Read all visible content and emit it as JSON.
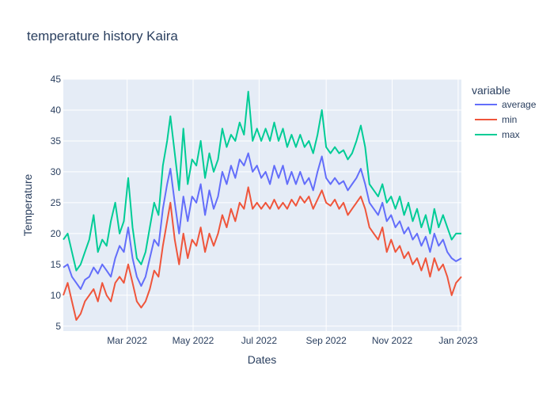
{
  "chart_data": {
    "type": "line",
    "title": "temperature history Kaira",
    "xlabel": "Dates",
    "ylabel": "Temperature",
    "x_range": [
      "2022-01-01",
      "2023-01-04"
    ],
    "ylim": [
      4.2,
      45
    ],
    "y_ticks": [
      5,
      10,
      15,
      20,
      25,
      30,
      35,
      40,
      45
    ],
    "x_ticks": [
      {
        "date": "2022-03-01",
        "label": "Mar 2022"
      },
      {
        "date": "2022-05-01",
        "label": "May 2022"
      },
      {
        "date": "2022-07-01",
        "label": "Jul 2022"
      },
      {
        "date": "2022-09-01",
        "label": "Sep 2022"
      },
      {
        "date": "2022-11-01",
        "label": "Nov 2022"
      },
      {
        "date": "2023-01-01",
        "label": "Jan 2023"
      }
    ],
    "grid": true,
    "plot_background": "#e5ecf6",
    "legend": {
      "title": "variable",
      "placement": "right"
    },
    "series": [
      {
        "name": "average",
        "color": "#636efa",
        "points": [
          [
            "2022-01-01",
            14.5
          ],
          [
            "2022-01-05",
            15
          ],
          [
            "2022-01-09",
            13
          ],
          [
            "2022-01-13",
            12
          ],
          [
            "2022-01-17",
            11
          ],
          [
            "2022-01-21",
            12.5
          ],
          [
            "2022-01-25",
            13
          ],
          [
            "2022-01-29",
            14.5
          ],
          [
            "2022-02-02",
            13.5
          ],
          [
            "2022-02-06",
            15
          ],
          [
            "2022-02-10",
            14
          ],
          [
            "2022-02-14",
            13
          ],
          [
            "2022-02-18",
            16
          ],
          [
            "2022-02-22",
            18
          ],
          [
            "2022-02-26",
            17
          ],
          [
            "2022-03-02",
            21
          ],
          [
            "2022-03-06",
            16
          ],
          [
            "2022-03-10",
            13
          ],
          [
            "2022-03-14",
            11.5
          ],
          [
            "2022-03-18",
            13
          ],
          [
            "2022-03-22",
            16
          ],
          [
            "2022-03-26",
            19
          ],
          [
            "2022-03-30",
            18
          ],
          [
            "2022-04-03",
            24
          ],
          [
            "2022-04-07",
            28
          ],
          [
            "2022-04-10",
            30.5
          ],
          [
            "2022-04-14",
            25
          ],
          [
            "2022-04-18",
            20
          ],
          [
            "2022-04-22",
            26
          ],
          [
            "2022-04-26",
            22
          ],
          [
            "2022-04-30",
            26
          ],
          [
            "2022-05-04",
            25
          ],
          [
            "2022-05-08",
            28
          ],
          [
            "2022-05-12",
            23
          ],
          [
            "2022-05-16",
            27
          ],
          [
            "2022-05-20",
            24
          ],
          [
            "2022-05-24",
            26
          ],
          [
            "2022-05-28",
            30
          ],
          [
            "2022-06-01",
            28
          ],
          [
            "2022-06-05",
            31
          ],
          [
            "2022-06-09",
            29
          ],
          [
            "2022-06-13",
            32
          ],
          [
            "2022-06-17",
            31
          ],
          [
            "2022-06-21",
            33
          ],
          [
            "2022-06-25",
            30
          ],
          [
            "2022-06-29",
            31
          ],
          [
            "2022-07-03",
            29
          ],
          [
            "2022-07-07",
            30
          ],
          [
            "2022-07-11",
            28
          ],
          [
            "2022-07-15",
            31
          ],
          [
            "2022-07-19",
            29
          ],
          [
            "2022-07-23",
            31
          ],
          [
            "2022-07-27",
            28
          ],
          [
            "2022-07-31",
            30
          ],
          [
            "2022-08-04",
            28
          ],
          [
            "2022-08-08",
            30
          ],
          [
            "2022-08-12",
            28
          ],
          [
            "2022-08-16",
            29
          ],
          [
            "2022-08-20",
            27
          ],
          [
            "2022-08-24",
            30
          ],
          [
            "2022-08-28",
            32.5
          ],
          [
            "2022-09-01",
            29
          ],
          [
            "2022-09-05",
            28
          ],
          [
            "2022-09-09",
            29
          ],
          [
            "2022-09-13",
            28
          ],
          [
            "2022-09-17",
            28.5
          ],
          [
            "2022-09-21",
            27
          ],
          [
            "2022-09-25",
            28
          ],
          [
            "2022-09-29",
            29
          ],
          [
            "2022-10-03",
            30.5
          ],
          [
            "2022-10-07",
            28
          ],
          [
            "2022-10-11",
            25
          ],
          [
            "2022-10-15",
            24
          ],
          [
            "2022-10-19",
            23
          ],
          [
            "2022-10-23",
            25
          ],
          [
            "2022-10-27",
            22
          ],
          [
            "2022-10-31",
            23
          ],
          [
            "2022-11-04",
            21
          ],
          [
            "2022-11-08",
            22
          ],
          [
            "2022-11-12",
            20
          ],
          [
            "2022-11-16",
            21
          ],
          [
            "2022-11-20",
            19
          ],
          [
            "2022-11-24",
            20
          ],
          [
            "2022-11-28",
            18
          ],
          [
            "2022-12-02",
            19.5
          ],
          [
            "2022-12-06",
            17
          ],
          [
            "2022-12-10",
            20
          ],
          [
            "2022-12-14",
            18
          ],
          [
            "2022-12-18",
            19
          ],
          [
            "2022-12-22",
            17
          ],
          [
            "2022-12-26",
            16
          ],
          [
            "2022-12-30",
            15.5
          ],
          [
            "2023-01-04",
            16
          ]
        ]
      },
      {
        "name": "min",
        "color": "#ef553b",
        "points": [
          [
            "2022-01-01",
            10
          ],
          [
            "2022-01-05",
            12
          ],
          [
            "2022-01-09",
            9
          ],
          [
            "2022-01-13",
            6
          ],
          [
            "2022-01-17",
            7
          ],
          [
            "2022-01-21",
            9
          ],
          [
            "2022-01-25",
            10
          ],
          [
            "2022-01-29",
            11
          ],
          [
            "2022-02-02",
            9
          ],
          [
            "2022-02-06",
            12
          ],
          [
            "2022-02-10",
            10
          ],
          [
            "2022-02-14",
            9
          ],
          [
            "2022-02-18",
            12
          ],
          [
            "2022-02-22",
            13
          ],
          [
            "2022-02-26",
            12
          ],
          [
            "2022-03-02",
            15
          ],
          [
            "2022-03-06",
            12
          ],
          [
            "2022-03-10",
            9
          ],
          [
            "2022-03-14",
            8
          ],
          [
            "2022-03-18",
            9
          ],
          [
            "2022-03-22",
            11
          ],
          [
            "2022-03-26",
            14
          ],
          [
            "2022-03-30",
            13
          ],
          [
            "2022-04-03",
            18
          ],
          [
            "2022-04-07",
            22
          ],
          [
            "2022-04-10",
            25
          ],
          [
            "2022-04-14",
            19
          ],
          [
            "2022-04-18",
            15
          ],
          [
            "2022-04-22",
            20
          ],
          [
            "2022-04-26",
            16
          ],
          [
            "2022-04-30",
            19
          ],
          [
            "2022-05-04",
            18
          ],
          [
            "2022-05-08",
            21
          ],
          [
            "2022-05-12",
            17
          ],
          [
            "2022-05-16",
            20
          ],
          [
            "2022-05-20",
            18
          ],
          [
            "2022-05-24",
            20
          ],
          [
            "2022-05-28",
            23
          ],
          [
            "2022-06-01",
            21
          ],
          [
            "2022-06-05",
            24
          ],
          [
            "2022-06-09",
            22
          ],
          [
            "2022-06-13",
            25
          ],
          [
            "2022-06-17",
            24
          ],
          [
            "2022-06-21",
            27.5
          ],
          [
            "2022-06-25",
            24
          ],
          [
            "2022-06-29",
            25
          ],
          [
            "2022-07-03",
            24
          ],
          [
            "2022-07-07",
            25
          ],
          [
            "2022-07-11",
            24
          ],
          [
            "2022-07-15",
            25.5
          ],
          [
            "2022-07-19",
            24
          ],
          [
            "2022-07-23",
            25
          ],
          [
            "2022-07-27",
            24
          ],
          [
            "2022-07-31",
            25.5
          ],
          [
            "2022-08-04",
            24.5
          ],
          [
            "2022-08-08",
            26
          ],
          [
            "2022-08-12",
            25
          ],
          [
            "2022-08-16",
            26
          ],
          [
            "2022-08-20",
            24
          ],
          [
            "2022-08-24",
            25.5
          ],
          [
            "2022-08-28",
            27
          ],
          [
            "2022-09-01",
            25
          ],
          [
            "2022-09-05",
            24.5
          ],
          [
            "2022-09-09",
            25.5
          ],
          [
            "2022-09-13",
            24
          ],
          [
            "2022-09-17",
            25
          ],
          [
            "2022-09-21",
            23
          ],
          [
            "2022-09-25",
            24
          ],
          [
            "2022-09-29",
            25
          ],
          [
            "2022-10-03",
            26
          ],
          [
            "2022-10-07",
            24
          ],
          [
            "2022-10-11",
            21
          ],
          [
            "2022-10-15",
            20
          ],
          [
            "2022-10-19",
            19
          ],
          [
            "2022-10-23",
            21
          ],
          [
            "2022-10-27",
            17
          ],
          [
            "2022-10-31",
            19
          ],
          [
            "2022-11-04",
            17
          ],
          [
            "2022-11-08",
            18
          ],
          [
            "2022-11-12",
            16
          ],
          [
            "2022-11-16",
            17
          ],
          [
            "2022-11-20",
            15
          ],
          [
            "2022-11-24",
            16
          ],
          [
            "2022-11-28",
            14
          ],
          [
            "2022-12-02",
            16
          ],
          [
            "2022-12-06",
            13
          ],
          [
            "2022-12-10",
            16
          ],
          [
            "2022-12-14",
            14
          ],
          [
            "2022-12-18",
            15
          ],
          [
            "2022-12-22",
            13
          ],
          [
            "2022-12-26",
            10
          ],
          [
            "2022-12-30",
            12
          ],
          [
            "2023-01-04",
            13
          ]
        ]
      },
      {
        "name": "max",
        "color": "#00cc96",
        "points": [
          [
            "2022-01-01",
            19
          ],
          [
            "2022-01-05",
            20
          ],
          [
            "2022-01-09",
            17
          ],
          [
            "2022-01-13",
            14
          ],
          [
            "2022-01-17",
            15
          ],
          [
            "2022-01-21",
            17
          ],
          [
            "2022-01-25",
            19
          ],
          [
            "2022-01-29",
            23
          ],
          [
            "2022-02-02",
            17
          ],
          [
            "2022-02-06",
            19
          ],
          [
            "2022-02-10",
            18
          ],
          [
            "2022-02-14",
            22
          ],
          [
            "2022-02-18",
            25
          ],
          [
            "2022-02-22",
            20
          ],
          [
            "2022-02-26",
            22
          ],
          [
            "2022-03-02",
            29
          ],
          [
            "2022-03-06",
            21
          ],
          [
            "2022-03-10",
            16
          ],
          [
            "2022-03-14",
            15
          ],
          [
            "2022-03-18",
            17
          ],
          [
            "2022-03-22",
            21
          ],
          [
            "2022-03-26",
            25
          ],
          [
            "2022-03-30",
            23
          ],
          [
            "2022-04-03",
            31
          ],
          [
            "2022-04-07",
            35
          ],
          [
            "2022-04-10",
            39
          ],
          [
            "2022-04-14",
            33
          ],
          [
            "2022-04-18",
            27
          ],
          [
            "2022-04-22",
            37
          ],
          [
            "2022-04-26",
            28
          ],
          [
            "2022-04-30",
            32
          ],
          [
            "2022-05-04",
            31
          ],
          [
            "2022-05-08",
            35
          ],
          [
            "2022-05-12",
            29
          ],
          [
            "2022-05-16",
            33
          ],
          [
            "2022-05-20",
            30
          ],
          [
            "2022-05-24",
            32
          ],
          [
            "2022-05-28",
            37
          ],
          [
            "2022-06-01",
            34
          ],
          [
            "2022-06-05",
            36
          ],
          [
            "2022-06-09",
            35
          ],
          [
            "2022-06-13",
            38
          ],
          [
            "2022-06-17",
            36
          ],
          [
            "2022-06-21",
            43
          ],
          [
            "2022-06-25",
            35
          ],
          [
            "2022-06-29",
            37
          ],
          [
            "2022-07-03",
            35
          ],
          [
            "2022-07-07",
            37
          ],
          [
            "2022-07-11",
            35
          ],
          [
            "2022-07-15",
            38
          ],
          [
            "2022-07-19",
            35
          ],
          [
            "2022-07-23",
            37
          ],
          [
            "2022-07-27",
            34
          ],
          [
            "2022-07-31",
            36
          ],
          [
            "2022-08-04",
            34
          ],
          [
            "2022-08-08",
            36
          ],
          [
            "2022-08-12",
            34
          ],
          [
            "2022-08-16",
            35
          ],
          [
            "2022-08-20",
            33
          ],
          [
            "2022-08-24",
            36
          ],
          [
            "2022-08-28",
            40
          ],
          [
            "2022-09-01",
            34
          ],
          [
            "2022-09-05",
            33
          ],
          [
            "2022-09-09",
            34
          ],
          [
            "2022-09-13",
            33
          ],
          [
            "2022-09-17",
            33.5
          ],
          [
            "2022-09-21",
            32
          ],
          [
            "2022-09-25",
            33
          ],
          [
            "2022-09-29",
            35
          ],
          [
            "2022-10-03",
            37.5
          ],
          [
            "2022-10-07",
            34
          ],
          [
            "2022-10-11",
            28
          ],
          [
            "2022-10-15",
            27
          ],
          [
            "2022-10-19",
            26
          ],
          [
            "2022-10-23",
            28
          ],
          [
            "2022-10-27",
            25
          ],
          [
            "2022-10-31",
            26
          ],
          [
            "2022-11-04",
            24
          ],
          [
            "2022-11-08",
            26
          ],
          [
            "2022-11-12",
            23
          ],
          [
            "2022-11-16",
            25
          ],
          [
            "2022-11-20",
            22
          ],
          [
            "2022-11-24",
            24
          ],
          [
            "2022-11-28",
            21
          ],
          [
            "2022-12-02",
            23
          ],
          [
            "2022-12-06",
            20
          ],
          [
            "2022-12-10",
            24
          ],
          [
            "2022-12-14",
            21
          ],
          [
            "2022-12-18",
            23
          ],
          [
            "2022-12-22",
            21
          ],
          [
            "2022-12-26",
            19
          ],
          [
            "2022-12-30",
            20
          ],
          [
            "2023-01-04",
            20
          ]
        ]
      }
    ]
  }
}
